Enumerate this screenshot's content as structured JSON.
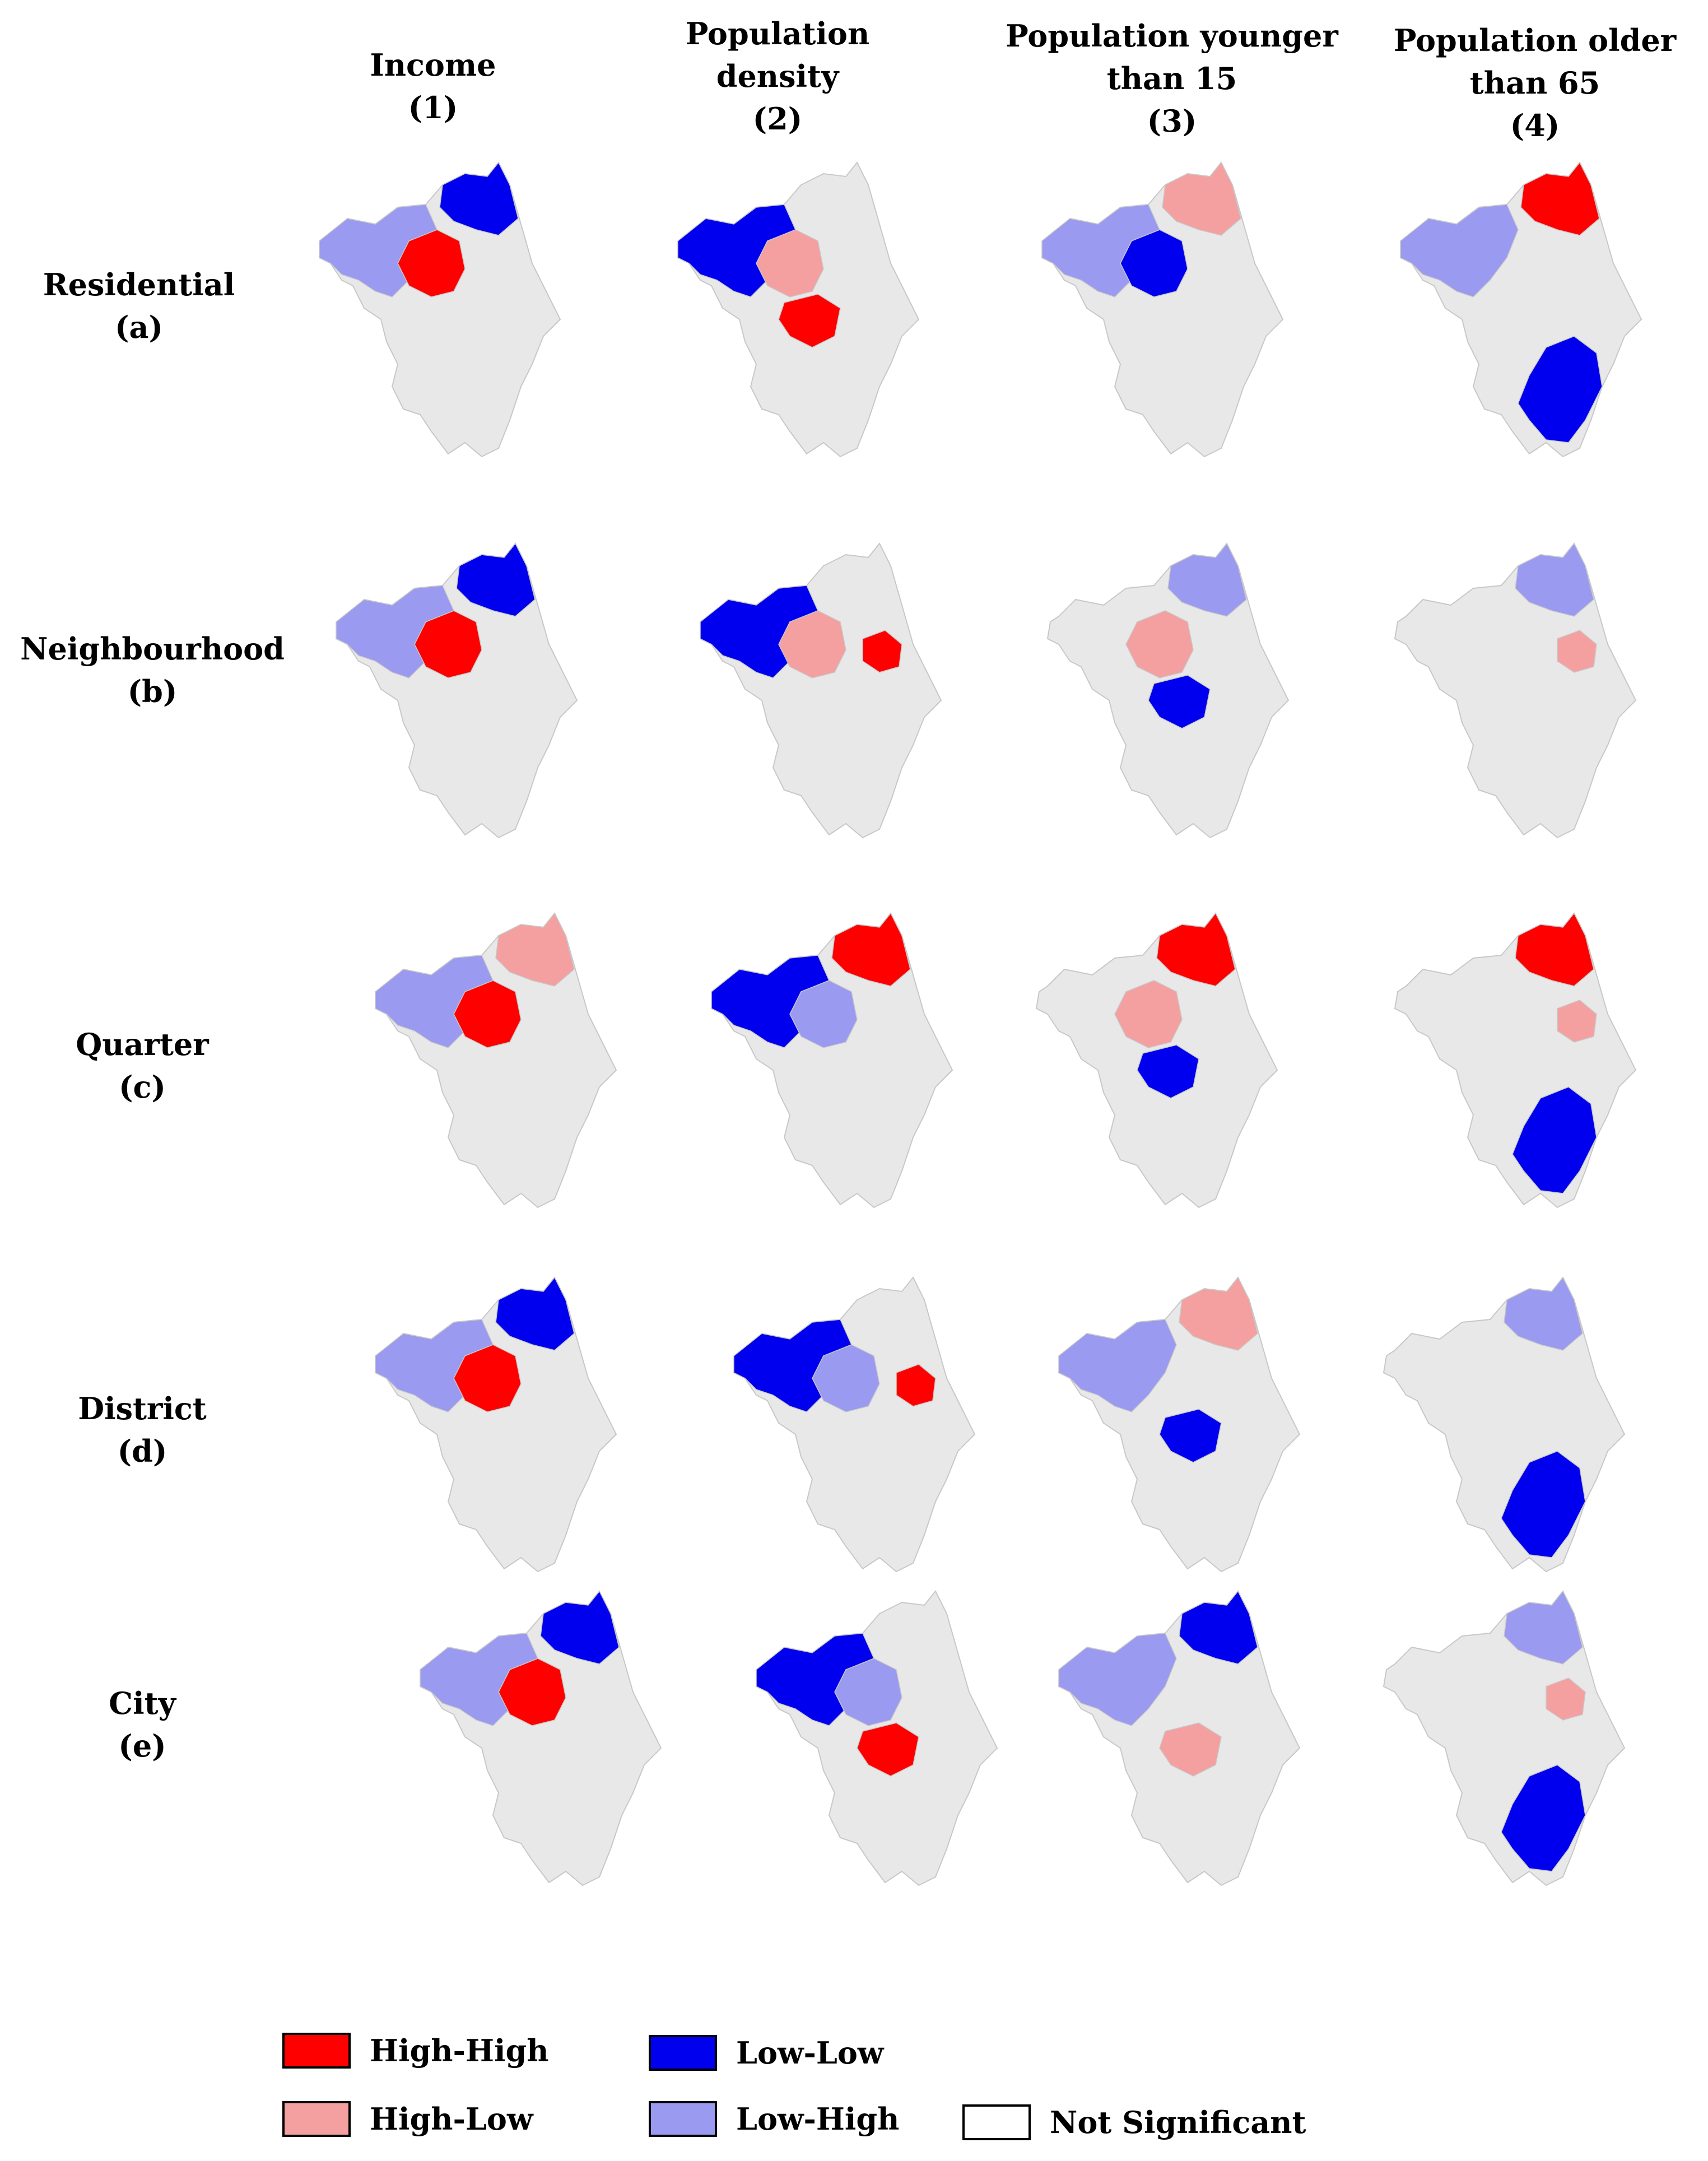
{
  "columns": [
    {
      "lines": [
        "Income",
        "(1)"
      ]
    },
    {
      "lines": [
        "Population",
        "density",
        "(2)"
      ]
    },
    {
      "lines": [
        "Population younger",
        "than 15",
        "(3)"
      ]
    },
    {
      "lines": [
        "Population older",
        "than 65",
        "(4)"
      ]
    }
  ],
  "rows": [
    {
      "lines": [
        "Residential",
        "(a)"
      ]
    },
    {
      "lines": [
        "Neighbourhood",
        "(b)"
      ]
    },
    {
      "lines": [
        "Quarter",
        "(c)"
      ]
    },
    {
      "lines": [
        "District",
        "(d)"
      ]
    },
    {
      "lines": [
        "City",
        "(e)"
      ]
    }
  ],
  "colors": {
    "high_high": "#ff0000",
    "high_low": "#f4a0a0",
    "low_low": "#0000ee",
    "low_high": "#9a9af0",
    "not_significant": "#e8e8e8",
    "region_border": "#c8c8c8"
  },
  "legend": [
    {
      "key": "high_high",
      "label": "High-High"
    },
    {
      "key": "low_low",
      "label": "Low-Low"
    },
    {
      "key": "high_low",
      "label": "High-Low"
    },
    {
      "key": "low_high",
      "label": "Low-High"
    },
    {
      "key": "not_significant",
      "label": "Not Significant"
    }
  ],
  "clusters": {
    "a1": [
      "north",
      "northwest",
      "center"
    ],
    "a2": [
      "northwest",
      "southcenter",
      "center"
    ],
    "a3": [
      "northwest",
      "center",
      "north"
    ],
    "a4": [
      "northwest",
      "north",
      "coast"
    ],
    "b1": [
      "north",
      "northwest",
      "center"
    ],
    "b2": [
      "northwest",
      "center",
      "east"
    ],
    "b3": [
      "north",
      "center",
      "southcenter"
    ],
    "b4": [
      "north",
      "east"
    ],
    "c1": [
      "northwest",
      "north",
      "center"
    ],
    "c2": [
      "northwest",
      "center",
      "north"
    ],
    "c3": [
      "center",
      "southcenter",
      "north"
    ],
    "c4": [
      "north",
      "east",
      "coast"
    ],
    "d1": [
      "north",
      "northwest",
      "center"
    ],
    "d2": [
      "northwest",
      "center",
      "east"
    ],
    "d3": [
      "northwest",
      "southcenter",
      "north"
    ],
    "d4": [
      "north",
      "coast"
    ],
    "e1": [
      "north",
      "northwest",
      "center"
    ],
    "e2": [
      "northwest",
      "center",
      "southcenter"
    ],
    "e3": [
      "northwest",
      "southcenter",
      "north"
    ],
    "e4": [
      "north",
      "east",
      "coast"
    ]
  },
  "cluster_classes": {
    "a1": [
      "low_low",
      "low_high",
      "high_high"
    ],
    "a2": [
      "low_low",
      "high_high",
      "high_low"
    ],
    "a3": [
      "low_high",
      "low_low",
      "high_low"
    ],
    "a4": [
      "low_high",
      "high_high",
      "low_low"
    ],
    "b1": [
      "low_low",
      "low_high",
      "high_high"
    ],
    "b2": [
      "low_low",
      "high_low",
      "high_high"
    ],
    "b3": [
      "low_high",
      "high_low",
      "low_low"
    ],
    "b4": [
      "low_high",
      "high_low"
    ],
    "c1": [
      "low_high",
      "high_low",
      "high_high"
    ],
    "c2": [
      "low_low",
      "low_high",
      "high_high"
    ],
    "c3": [
      "high_low",
      "low_low",
      "high_high"
    ],
    "c4": [
      "high_high",
      "high_low",
      "low_low"
    ],
    "d1": [
      "low_low",
      "low_high",
      "high_high"
    ],
    "d2": [
      "low_low",
      "low_high",
      "high_high"
    ],
    "d3": [
      "low_high",
      "low_low",
      "high_low"
    ],
    "d4": [
      "low_high",
      "low_low"
    ],
    "e1": [
      "low_low",
      "low_high",
      "high_high"
    ],
    "e2": [
      "low_low",
      "low_high",
      "high_high"
    ],
    "e3": [
      "low_high",
      "high_low",
      "low_low"
    ],
    "e4": [
      "low_high",
      "high_low",
      "low_low"
    ]
  }
}
